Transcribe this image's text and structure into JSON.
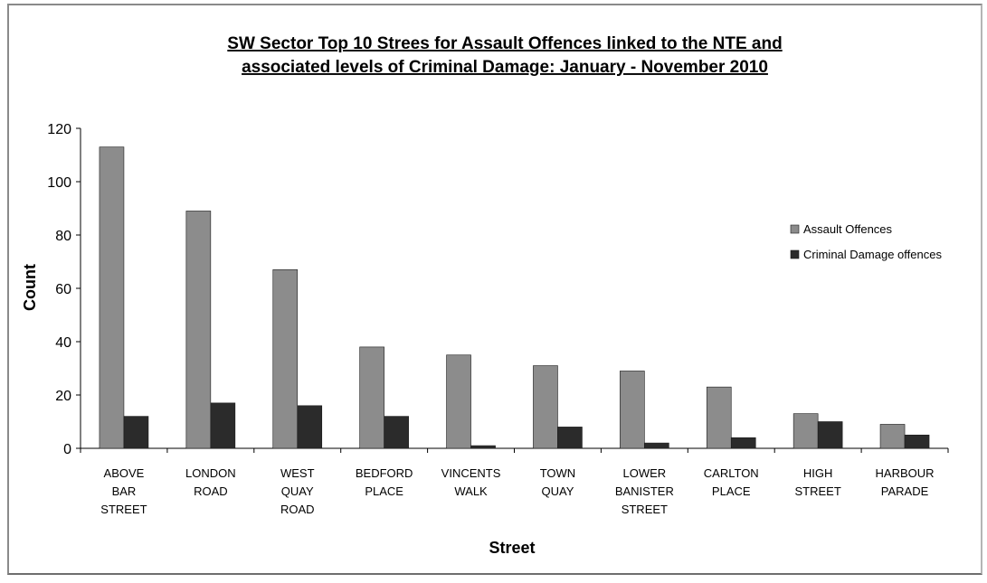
{
  "colors": {
    "assault": "#8c8c8c",
    "criminal_damage": "#2b2b2b",
    "axis": "#000000"
  },
  "chart_data": {
    "type": "bar",
    "title": [
      "SW Sector Top 10 Strees for Assault Offences linked to the NTE and",
      "associated levels of Criminal Damage: January - November 2010"
    ],
    "xlabel": "Street",
    "ylabel": "Count",
    "ylim": [
      0,
      120
    ],
    "yticks": [
      0,
      20,
      40,
      60,
      80,
      100,
      120
    ],
    "grid": false,
    "legend_position": "right",
    "categories": [
      [
        "ABOVE",
        "BAR",
        "STREET"
      ],
      [
        "LONDON",
        "ROAD"
      ],
      [
        "WEST",
        "QUAY",
        "ROAD"
      ],
      [
        "BEDFORD",
        "PLACE"
      ],
      [
        "VINCENTS",
        "WALK"
      ],
      [
        "TOWN",
        "QUAY"
      ],
      [
        "LOWER",
        "BANISTER",
        "STREET"
      ],
      [
        "CARLTON",
        "PLACE"
      ],
      [
        "HIGH",
        "STREET"
      ],
      [
        "HARBOUR",
        "PARADE"
      ]
    ],
    "series": [
      {
        "name": "Assault Offences",
        "values": [
          113,
          89,
          67,
          38,
          35,
          31,
          29,
          23,
          13,
          9
        ]
      },
      {
        "name": "Criminal Damage offences",
        "values": [
          12,
          17,
          16,
          12,
          1,
          8,
          2,
          4,
          10,
          5
        ]
      }
    ]
  }
}
